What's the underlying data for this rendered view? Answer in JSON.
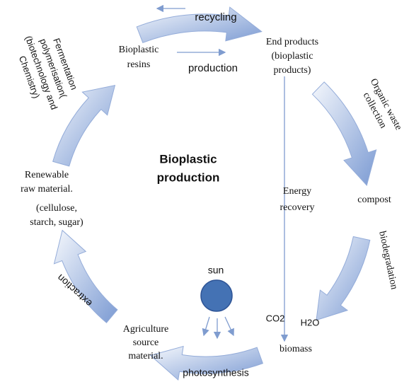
{
  "title": [
    "Bioplastic",
    "production"
  ],
  "nodes": [
    {
      "lines": [
        "Bioplastic",
        "resins"
      ]
    },
    {
      "lines": [
        "End products",
        "(bioplastic",
        "products)"
      ]
    },
    {
      "lines": [
        "compost"
      ]
    },
    {
      "lines": [
        "biomass"
      ]
    },
    {
      "lines": [
        "Agriculture",
        "source",
        "material."
      ]
    },
    {
      "lines": [
        "Renewable",
        "raw material."
      ]
    },
    {
      "lines": [
        "(cellulose,",
        "starch, sugar)"
      ]
    },
    {
      "lines": [
        "Energy",
        "recovery"
      ]
    },
    {
      "lines": [
        "sun"
      ]
    },
    {
      "lines": [
        "CO2"
      ]
    },
    {
      "lines": [
        "H2O"
      ]
    }
  ],
  "arrow_labels": [
    {
      "lines": [
        "recycling"
      ]
    },
    {
      "lines": [
        "production"
      ]
    },
    {
      "lines": [
        "Organic waste",
        "collection"
      ]
    },
    {
      "lines": [
        "biodegradation"
      ]
    },
    {
      "lines": [
        "photosynthesis"
      ]
    },
    {
      "lines": [
        "extraction"
      ]
    },
    {
      "lines": [
        "Fermentation",
        "polymerisation(",
        "(biotechnology and",
        "Chemistry)"
      ]
    }
  ]
}
